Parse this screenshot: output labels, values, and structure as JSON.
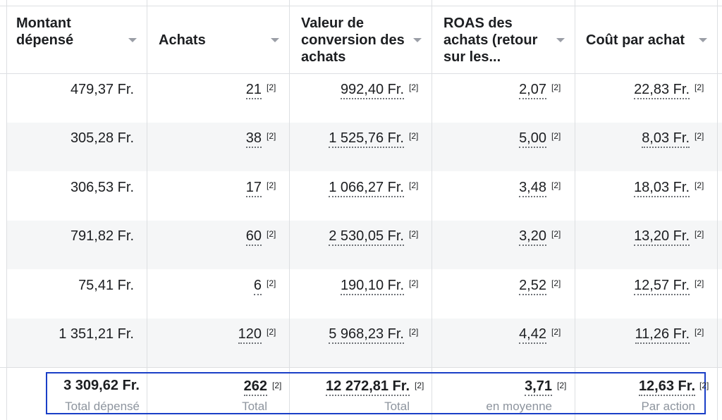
{
  "columns": [
    {
      "key": "montant",
      "label": "Montant\ndépensé"
    },
    {
      "key": "achats",
      "label": "Achats"
    },
    {
      "key": "valeur",
      "label": "Valeur de\nconversion des\nachats"
    },
    {
      "key": "roas",
      "label": "ROAS des\nachats (retour\nsur les..."
    },
    {
      "key": "cout",
      "label": "Coût par achat"
    }
  ],
  "rows": [
    {
      "montant": "479,37 Fr.",
      "achats": "21",
      "valeur": "992,40 Fr.",
      "roas": "2,07",
      "cout": "22,83 Fr."
    },
    {
      "montant": "305,28 Fr.",
      "achats": "38",
      "valeur": "1 525,76 Fr.",
      "roas": "5,00",
      "cout": "8,03 Fr."
    },
    {
      "montant": "306,53 Fr.",
      "achats": "17",
      "valeur": "1 066,27 Fr.",
      "roas": "3,48",
      "cout": "18,03 Fr."
    },
    {
      "montant": "791,82 Fr.",
      "achats": "60",
      "valeur": "2 530,05 Fr.",
      "roas": "3,20",
      "cout": "13,20 Fr."
    },
    {
      "montant": "75,41 Fr.",
      "achats": "6",
      "valeur": "190,10 Fr.",
      "roas": "2,52",
      "cout": "12,57 Fr."
    },
    {
      "montant": "1 351,21 Fr.",
      "achats": "120",
      "valeur": "5 968,23 Fr.",
      "roas": "4,42",
      "cout": "11,26 Fr."
    }
  ],
  "note": "[2]",
  "totals": {
    "montant": {
      "value": "3 309,62 Fr.",
      "label": "Total dépensé"
    },
    "achats": {
      "value": "262",
      "label": "Total"
    },
    "valeur": {
      "value": "12 272,81 Fr.",
      "label": "Total"
    },
    "roas": {
      "value": "3,71",
      "label": "en moyenne"
    },
    "cout": {
      "value": "12,63 Fr.",
      "label": "Par action"
    }
  }
}
